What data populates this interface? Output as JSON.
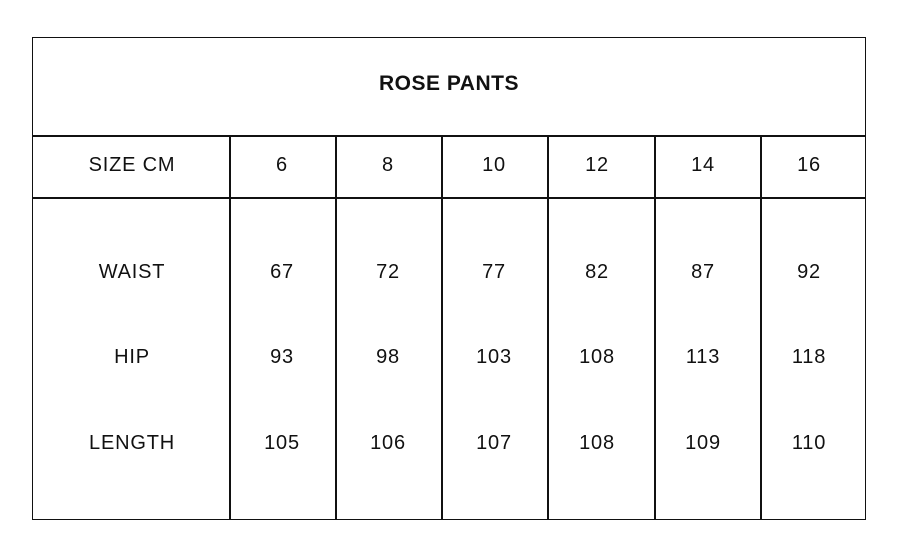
{
  "title": "ROSE PANTS",
  "header": {
    "label": "SIZE CM",
    "sizes": [
      "6",
      "8",
      "10",
      "12",
      "14",
      "16"
    ]
  },
  "rows": [
    {
      "label": "WAIST",
      "values": [
        "67",
        "72",
        "77",
        "82",
        "87",
        "92"
      ]
    },
    {
      "label": "HIP",
      "values": [
        "93",
        "98",
        "103",
        "108",
        "113",
        "118"
      ]
    },
    {
      "label": "LENGTH",
      "values": [
        "105",
        "106",
        "107",
        "108",
        "109",
        "110"
      ]
    }
  ]
}
